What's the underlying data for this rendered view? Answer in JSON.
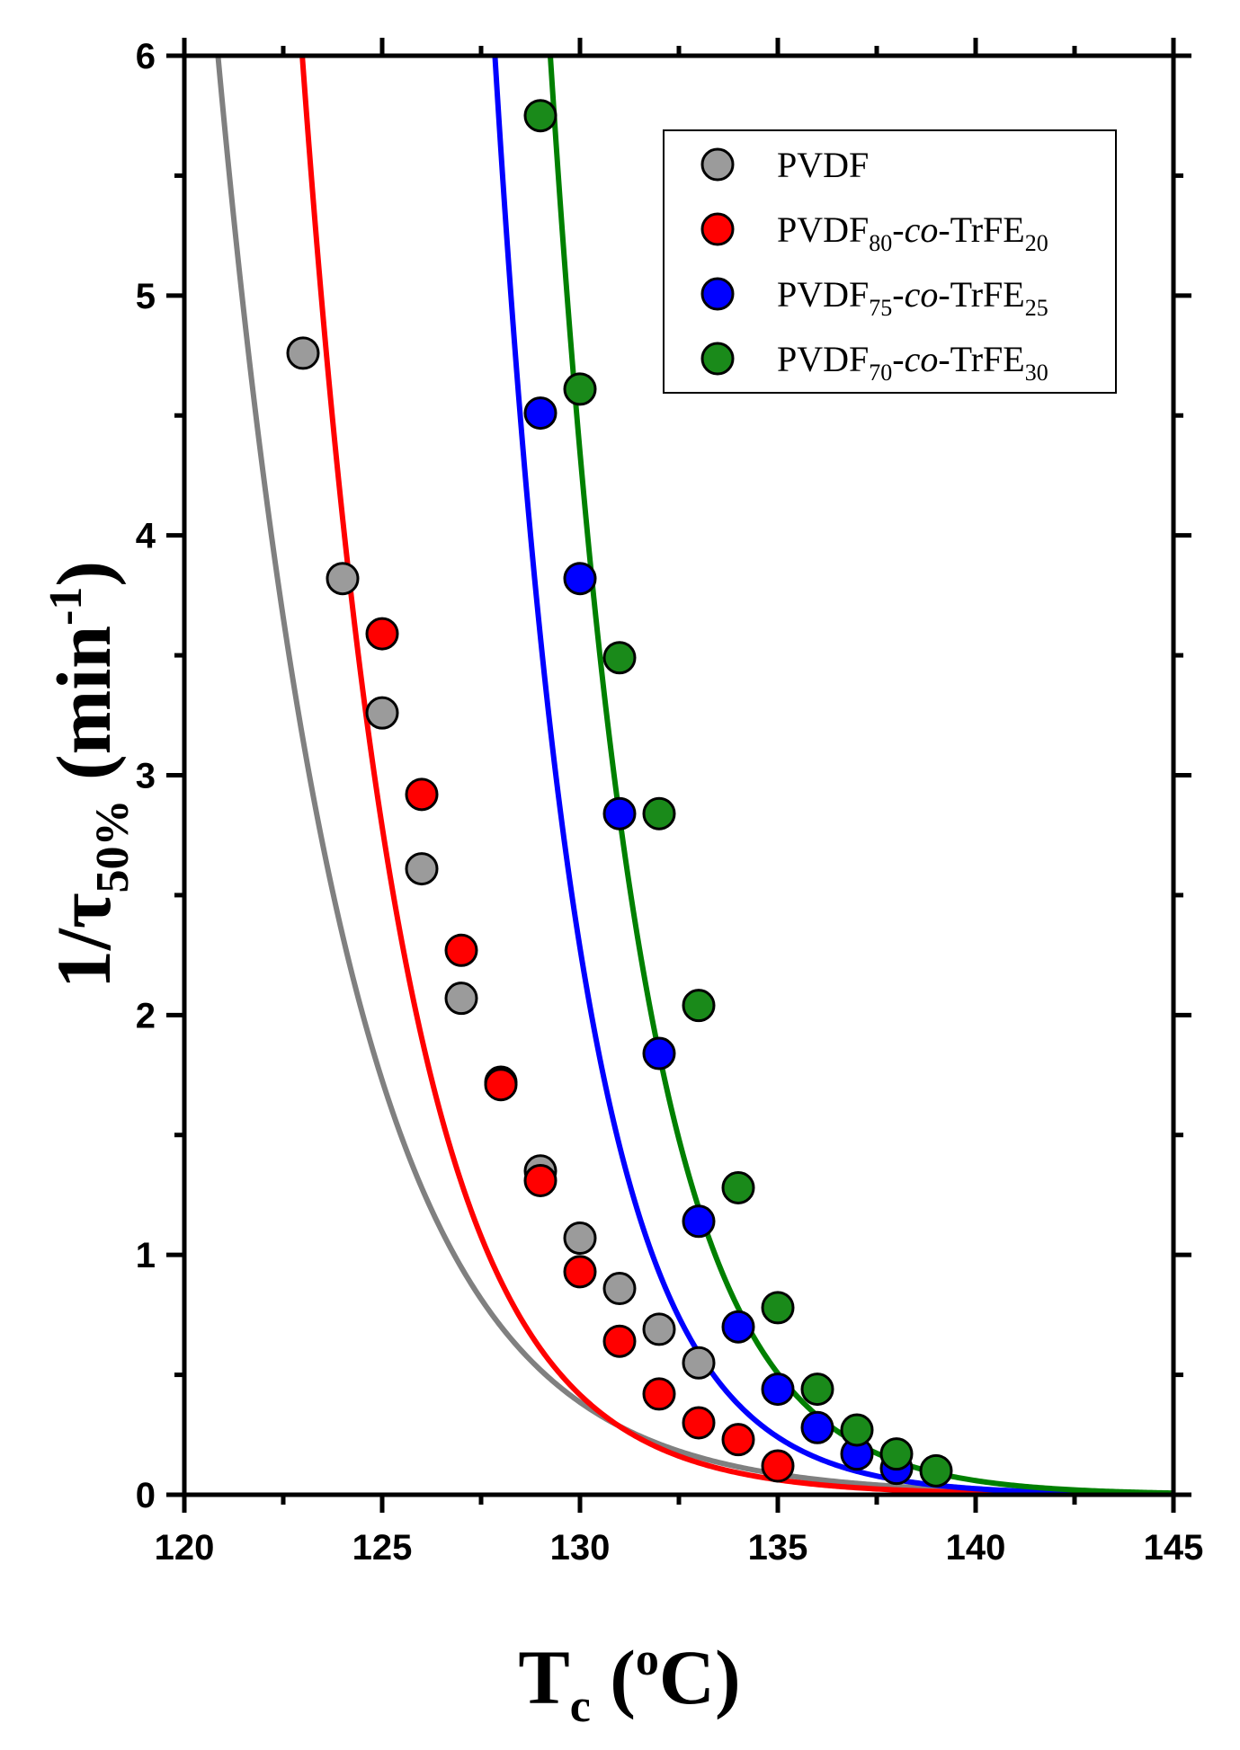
{
  "chart_data": {
    "type": "scatter",
    "title": "",
    "xlabel": {
      "main": "T",
      "sub": "c",
      "rest": " (",
      "sup": "o",
      "end": "C)"
    },
    "ylabel": {
      "main": "1/τ",
      "sub": "50%",
      "rest": " (min",
      "sup": "-1",
      "end": ")"
    },
    "xlim": [
      120,
      145
    ],
    "ylim": [
      0,
      6
    ],
    "xticks": [
      120,
      125,
      130,
      135,
      140,
      145
    ],
    "yticks": [
      0,
      1,
      2,
      3,
      4,
      5,
      6
    ],
    "grid": false,
    "legend_position": "top-right",
    "series": [
      {
        "name": "PVDF",
        "legend": {
          "base": "PVDF",
          "sub1": "",
          "mid": "",
          "ital": "",
          "after": "",
          "sub2": ""
        },
        "line_color": "#808080",
        "marker_color": "#9b9b9b",
        "x": [
          123,
          124,
          125,
          126,
          127,
          128,
          129,
          130,
          131,
          132,
          133
        ],
        "y": [
          4.76,
          3.82,
          3.26,
          2.61,
          2.07,
          1.72,
          1.35,
          1.07,
          0.86,
          0.69,
          0.55
        ],
        "fit": {
          "a": 6.0,
          "b": 0.3,
          "x0": 120.85
        }
      },
      {
        "name": "PVDF80-co-TrFE20",
        "legend": {
          "base": "PVDF",
          "sub1": "80",
          "mid": "-",
          "ital": "co",
          "after": "-TrFE",
          "sub2": "20"
        },
        "line_color": "#ff0000",
        "marker_color": "#ff0000",
        "x": [
          125,
          126,
          127,
          128,
          129,
          130,
          131,
          132,
          133,
          134,
          135
        ],
        "y": [
          3.59,
          2.92,
          2.27,
          1.71,
          1.31,
          0.93,
          0.64,
          0.42,
          0.3,
          0.23,
          0.12
        ],
        "fit": {
          "a": 6.0,
          "b": 0.38,
          "x0": 122.98
        }
      },
      {
        "name": "PVDF75-co-TrFE25",
        "legend": {
          "base": "PVDF",
          "sub1": "75",
          "mid": "-",
          "ital": "co",
          "after": "-TrFE",
          "sub2": "25"
        },
        "line_color": "#0000ff",
        "marker_color": "#0000ff",
        "x": [
          129,
          130,
          131,
          132,
          133,
          134,
          135,
          136,
          137,
          138
        ],
        "y": [
          4.51,
          3.82,
          2.84,
          1.84,
          1.14,
          0.7,
          0.44,
          0.28,
          0.17,
          0.11
        ],
        "fit": {
          "a": 6.0,
          "b": 0.45,
          "x0": 127.85
        }
      },
      {
        "name": "PVDF70-co-TrFE30",
        "legend": {
          "base": "PVDF",
          "sub1": "70",
          "mid": "-",
          "ital": "co",
          "after": "-TrFE",
          "sub2": "30"
        },
        "line_color": "#008000",
        "marker_color": "#1a8a1a",
        "x": [
          129,
          130,
          131,
          132,
          133,
          134,
          135,
          136,
          137,
          138,
          139
        ],
        "y": [
          5.75,
          4.61,
          3.49,
          2.84,
          2.04,
          1.28,
          0.78,
          0.44,
          0.27,
          0.17,
          0.1
        ],
        "fit": {
          "a": 6.0,
          "b": 0.43,
          "x0": 129.25
        }
      }
    ]
  }
}
